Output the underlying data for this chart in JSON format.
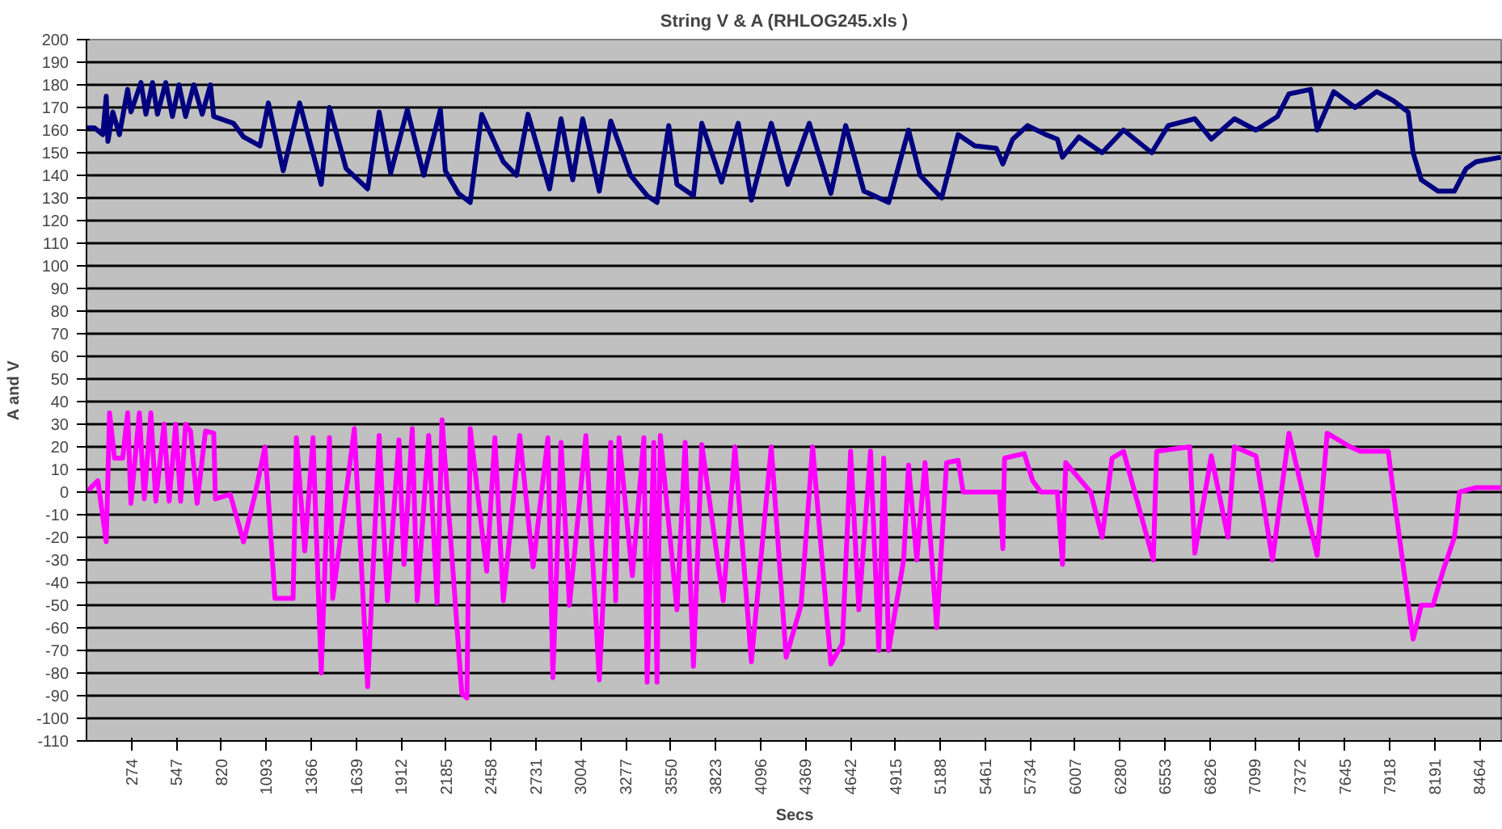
{
  "chart_data": {
    "type": "line",
    "title": "String V & A     (RHLOG245.xls )",
    "xlabel": "Secs",
    "ylabel": "A and V",
    "xlim": [
      1,
      8605
    ],
    "xticks": [
      274,
      547,
      820,
      1093,
      1366,
      1639,
      1912,
      2185,
      2458,
      2731,
      3004,
      3277,
      3550,
      3823,
      4096,
      4369,
      4642,
      4915,
      5188,
      5461,
      5734,
      6007,
      6280,
      6553,
      6826,
      7099,
      7372,
      7645,
      7918,
      8191,
      8464
    ],
    "ylim": [
      -110,
      200
    ],
    "yticks": [
      -110,
      -100,
      -90,
      -80,
      -70,
      -60,
      -50,
      -40,
      -30,
      -20,
      -10,
      0,
      10,
      20,
      30,
      40,
      50,
      60,
      70,
      80,
      90,
      100,
      110,
      120,
      130,
      140,
      150,
      160,
      170,
      180,
      190,
      200
    ],
    "grid": "y",
    "marker": "none",
    "line_style": "solid",
    "series": [
      {
        "color": "#000080",
        "x": [
          1,
          50,
          100,
          121,
          131,
          161,
          201,
          251,
          271,
          332,
          362,
          402,
          432,
          482,
          523,
          563,
          603,
          653,
          704,
          754,
          774,
          894,
          955,
          1055,
          1106,
          1196,
          1296,
          1427,
          1477,
          1578,
          1709,
          1779,
          1849,
          1950,
          2050,
          2151,
          2181,
          2261,
          2332,
          2402,
          2533,
          2613,
          2683,
          2814,
          2884,
          2955,
          3015,
          3116,
          3186,
          3306,
          3407,
          3467,
          3538,
          3588,
          3688,
          3739,
          3859,
          3960,
          4040,
          4161,
          4261,
          4392,
          4523,
          4613,
          4724,
          4874,
          4995,
          5065,
          5196,
          5296,
          5397,
          5528,
          5568,
          5628,
          5718,
          5829,
          5899,
          5930,
          6030,
          6171,
          6301,
          6472,
          6573,
          6734,
          6834,
          6975,
          7105,
          7236,
          7306,
          7437,
          7477,
          7578,
          7708,
          7839,
          7940,
          8030,
          8060,
          8110,
          8211,
          8311,
          8382,
          8442,
          8593
        ],
        "values": [
          161,
          161,
          158,
          175,
          155,
          168,
          158,
          178,
          168,
          181,
          167,
          181,
          167,
          181,
          166,
          180,
          166,
          180,
          167,
          180,
          166,
          163,
          157,
          153,
          172,
          142,
          172,
          136,
          170,
          143,
          134,
          168,
          141,
          169,
          140,
          169,
          142,
          132,
          128,
          167,
          146,
          140,
          167,
          134,
          165,
          138,
          165,
          133,
          164,
          140,
          131,
          128,
          162,
          136,
          131,
          163,
          137,
          163,
          129,
          163,
          136,
          163,
          132,
          162,
          133,
          128,
          160,
          140,
          130,
          158,
          153,
          152,
          145,
          156,
          162,
          158,
          156,
          148,
          157,
          150,
          160,
          150,
          162,
          165,
          156,
          165,
          160,
          166,
          176,
          178,
          160,
          177,
          170,
          177,
          173,
          168,
          150,
          138,
          133,
          133,
          143,
          146,
          148
        ]
      },
      {
        "color": "#ff00ff",
        "x": [
          1,
          70,
          121,
          141,
          171,
          221,
          251,
          271,
          322,
          352,
          392,
          422,
          472,
          503,
          543,
          573,
          603,
          633,
          673,
          724,
          774,
          784,
          874,
          955,
          1025,
          1085,
          1146,
          1256,
          1276,
          1327,
          1377,
          1427,
          1477,
          1497,
          1628,
          1709,
          1779,
          1829,
          1899,
          1930,
          1980,
          2010,
          2080,
          2131,
          2161,
          2281,
          2312,
          2332,
          2432,
          2482,
          2533,
          2633,
          2714,
          2804,
          2834,
          2884,
          2935,
          3035,
          3116,
          3186,
          3216,
          3236,
          3317,
          3387,
          3407,
          3447,
          3467,
          3487,
          3588,
          3638,
          3688,
          3739,
          3869,
          3940,
          4040,
          4161,
          4251,
          4342,
          4412,
          4523,
          4593,
          4643,
          4693,
          4764,
          4814,
          4844,
          4874,
          4965,
          4995,
          5045,
          5095,
          5166,
          5226,
          5296,
          5327,
          5548,
          5568,
          5578,
          5698,
          5749,
          5799,
          5899,
          5930,
          5950,
          6101,
          6171,
          6231,
          6301,
          6482,
          6502,
          6703,
          6734,
          6834,
          6935,
          6975,
          7105,
          7206,
          7306,
          7477,
          7538,
          7678,
          7739,
          7909,
          7940,
          8060,
          8110,
          8181,
          8241,
          8311,
          8342,
          8442,
          8593
        ],
        "values": [
          0,
          5,
          -22,
          35,
          15,
          15,
          35,
          -5,
          35,
          -3,
          35,
          -4,
          30,
          -4,
          30,
          -4,
          30,
          27,
          -5,
          27,
          26,
          -3,
          -1,
          -22,
          -1,
          20,
          -47,
          -47,
          24,
          -26,
          24,
          -80,
          24,
          -47,
          28,
          -86,
          25,
          -48,
          23,
          -32,
          28,
          -48,
          25,
          -49,
          32,
          -89,
          -91,
          28,
          -35,
          24,
          -48,
          25,
          -33,
          24,
          -82,
          22,
          -50,
          25,
          -83,
          22,
          -48,
          24,
          -37,
          24,
          -84,
          22,
          -84,
          25,
          -52,
          22,
          -77,
          21,
          -48,
          20,
          -75,
          20,
          -73,
          -50,
          20,
          -76,
          -67,
          18,
          -52,
          18,
          -70,
          15,
          -70,
          -30,
          12,
          -30,
          13,
          -60,
          13,
          14,
          0,
          0,
          -25,
          15,
          17,
          5,
          0,
          0,
          -32,
          13,
          0,
          -20,
          15,
          18,
          -30,
          18,
          20,
          -27,
          16,
          -20,
          20,
          16,
          -30,
          26,
          -28,
          26,
          20,
          18,
          18,
          0,
          -65,
          -50,
          -50,
          -35,
          -20,
          0,
          2,
          2
        ]
      }
    ]
  }
}
